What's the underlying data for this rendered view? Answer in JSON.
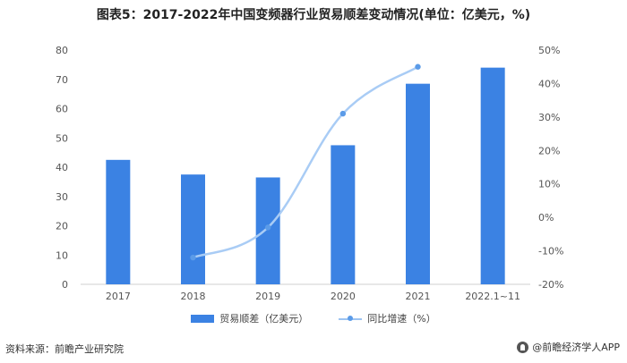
{
  "title": "图表5：2017-2022年中国变频器行业贸易顺差变动情况(单位：亿美元，%)",
  "footer": {
    "source": "资料来源：前瞻产业研究院",
    "brand": "@前瞻经济学人APP"
  },
  "chart_data": {
    "type": "bar",
    "categories": [
      "2017",
      "2018",
      "2019",
      "2020",
      "2021",
      "2022.1~11"
    ],
    "series": [
      {
        "name": "贸易顺差（亿美元）",
        "type": "bar",
        "axis": "left",
        "values": [
          42.5,
          37.5,
          36.5,
          47.5,
          68.5,
          74
        ]
      },
      {
        "name": "同比增速（%）",
        "type": "line",
        "axis": "right",
        "values": [
          null,
          -12,
          -3,
          31,
          45,
          null
        ]
      }
    ],
    "y_left": {
      "ylim": [
        0,
        80
      ],
      "ticks": [
        "0",
        "10",
        "20",
        "30",
        "40",
        "50",
        "60",
        "70",
        "80"
      ]
    },
    "y_right": {
      "ylim": [
        -20,
        50
      ],
      "ticks": [
        "-20%",
        "-10%",
        "0%",
        "10%",
        "20%",
        "30%",
        "40%",
        "50%"
      ]
    },
    "colors": {
      "bar": "#3b82e3",
      "line": "#a9ccf5",
      "marker": "#5b9be8"
    },
    "grid": false,
    "legend": "bottom-center"
  }
}
